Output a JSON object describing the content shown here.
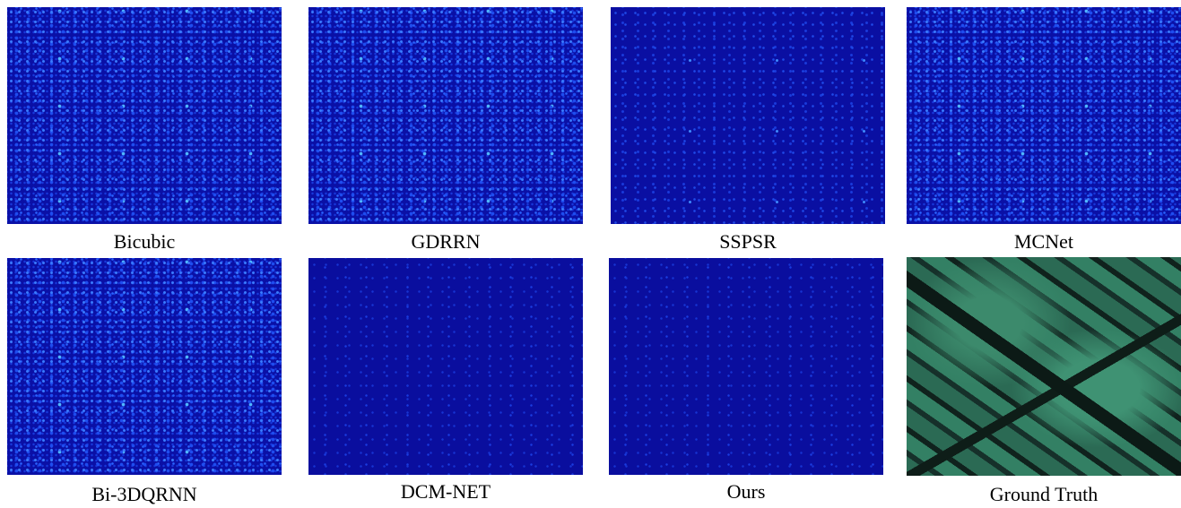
{
  "panels": [
    {
      "label": "Bicubic"
    },
    {
      "label": "GDRRN"
    },
    {
      "label": "SSPSR"
    },
    {
      "label": "MCNet"
    },
    {
      "label": "Bi-3DQRNN"
    },
    {
      "label": "DCM-NET"
    },
    {
      "label": "Ours"
    },
    {
      "label": "Ground Truth"
    }
  ]
}
